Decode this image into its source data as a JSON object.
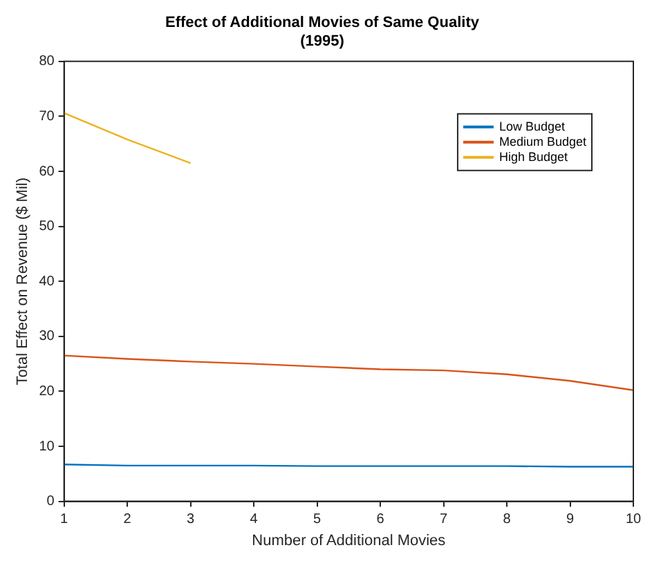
{
  "chart_data": {
    "type": "line",
    "title": "Effect of Additional Movies of Same Quality",
    "subtitle": "(1995)",
    "xlabel": "Number of Additional Movies",
    "ylabel": "Total Effect on Revenue ($ Mil)",
    "x": [
      1,
      2,
      3,
      4,
      5,
      6,
      7,
      8,
      9,
      10
    ],
    "series": [
      {
        "name": "Low Budget",
        "color": "#0072bd",
        "values": [
          6.7,
          6.5,
          6.5,
          6.5,
          6.4,
          6.4,
          6.4,
          6.4,
          6.3,
          6.3
        ]
      },
      {
        "name": "Medium Budget",
        "color": "#d95319",
        "values": [
          26.5,
          25.9,
          25.4,
          25.0,
          24.5,
          24.0,
          23.8,
          23.1,
          21.9,
          20.2
        ]
      },
      {
        "name": "High Budget",
        "color": "#edb120",
        "values": [
          70.6,
          65.8,
          61.5,
          null,
          null,
          null,
          null,
          null,
          null,
          null
        ]
      }
    ],
    "xlim": [
      1,
      10
    ],
    "xticks": [
      1,
      2,
      3,
      4,
      5,
      6,
      7,
      8,
      9,
      10
    ],
    "ylim": [
      0,
      80
    ],
    "yticks": [
      0,
      10,
      20,
      30,
      40,
      50,
      60,
      70,
      80
    ],
    "grid": false,
    "legend": "top right",
    "marker": "none",
    "line_style": "solid"
  }
}
